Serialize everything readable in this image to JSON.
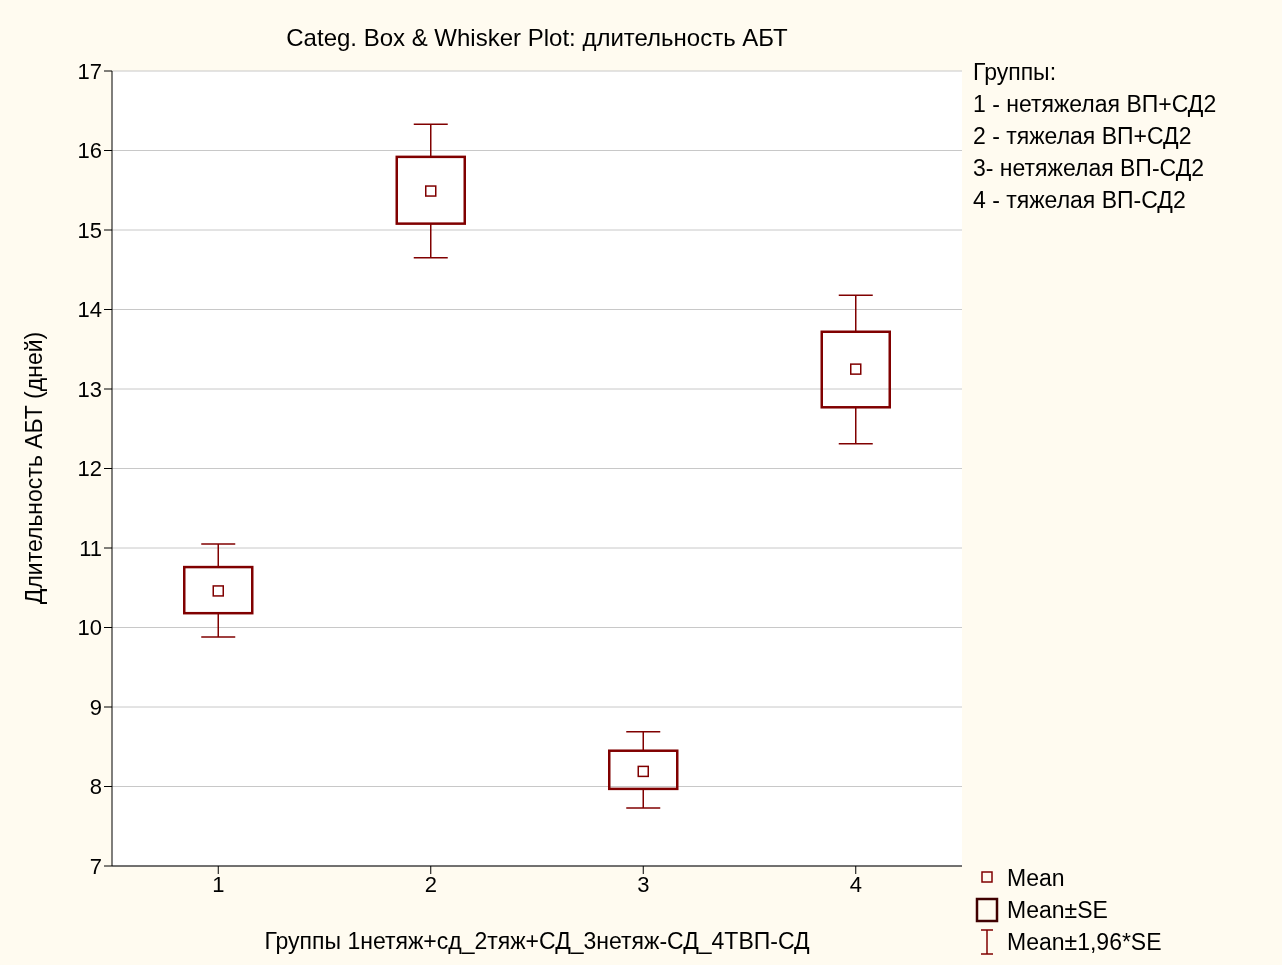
{
  "chart_data": {
    "type": "box",
    "title": "Categ. Box & Whisker Plot: длительность АБТ",
    "xlabel": "Группы 1нетяж+сд_2тяж+СД_3нетяж-СД_4ТВП-СД",
    "ylabel": "Длительность АБТ (дней)",
    "categories": [
      "1",
      "2",
      "3",
      "4"
    ],
    "color": "#800000",
    "boxes": [
      {
        "low": 9.88,
        "q1": 10.18,
        "median": 10.46,
        "q3": 10.76,
        "high": 11.05
      },
      {
        "low": 14.65,
        "q1": 15.08,
        "median": 15.49,
        "q3": 15.92,
        "high": 16.33
      },
      {
        "low": 7.73,
        "q1": 7.97,
        "median": 8.19,
        "q3": 8.45,
        "high": 8.69
      },
      {
        "low": 12.31,
        "q1": 12.77,
        "median": 13.25,
        "q3": 13.72,
        "high": 14.18
      }
    ],
    "ylim": [
      7,
      17
    ],
    "yticks": [
      7,
      8,
      9,
      10,
      11,
      12,
      13,
      14,
      15,
      16,
      17
    ],
    "grid": "y",
    "annotations": [
      "Группы:",
      "1 - нетяжелая ВП+СД2",
      "2 - тяжелая ВП+СД2",
      "3- нетяжелая ВП-СД2",
      "4 - тяжелая ВП-СД2",
      "Mean",
      "Mean±SE",
      "Mean±1,96*SE"
    ]
  }
}
